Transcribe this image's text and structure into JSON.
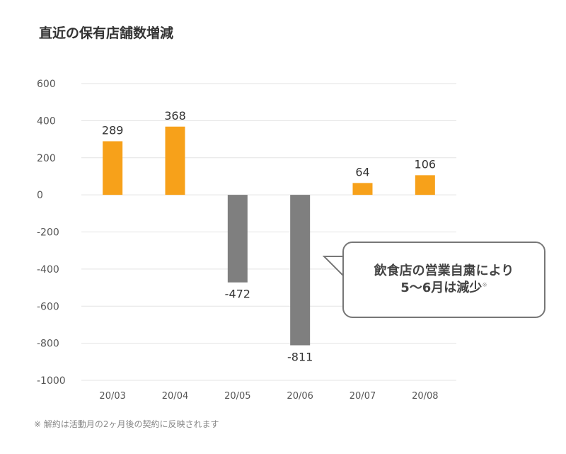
{
  "title": "直近の保有店舗数増減",
  "note": "※ 解約は活動月の2ヶ月後の契約に反映されます",
  "callout": {
    "line1": "飲食店の営業自粛により",
    "line2": "5〜6月は減少",
    "mark": "※"
  },
  "colors": {
    "positive": "#f7a11a",
    "negative": "#7f7f7f"
  },
  "chart_data": {
    "type": "bar",
    "title": "直近の保有店舗数増減",
    "categories": [
      "20/03",
      "20/04",
      "20/05",
      "20/06",
      "20/07",
      "20/08"
    ],
    "values": [
      289,
      368,
      -472,
      -811,
      64,
      106
    ],
    "ylim": [
      -1000,
      600
    ],
    "yticks": [
      600,
      400,
      200,
      0,
      -200,
      -400,
      -600,
      -800,
      -1000
    ],
    "ytick_labels": [
      "600",
      "400",
      "200",
      "0",
      "-200",
      "-400",
      "-600",
      "-800",
      "-1000"
    ],
    "grid": true,
    "xlabel": "",
    "ylabel": ""
  }
}
